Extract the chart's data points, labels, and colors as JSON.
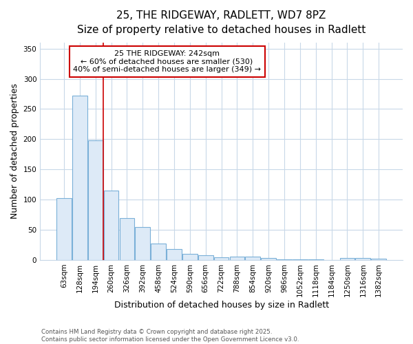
{
  "title_line1": "25, THE RIDGEWAY, RADLETT, WD7 8PZ",
  "title_line2": "Size of property relative to detached houses in Radlett",
  "xlabel": "Distribution of detached houses by size in Radlett",
  "ylabel": "Number of detached properties",
  "bar_labels": [
    "63sqm",
    "128sqm",
    "194sqm",
    "260sqm",
    "326sqm",
    "392sqm",
    "458sqm",
    "524sqm",
    "590sqm",
    "656sqm",
    "722sqm",
    "788sqm",
    "854sqm",
    "920sqm",
    "986sqm",
    "1052sqm",
    "1118sqm",
    "1184sqm",
    "1250sqm",
    "1316sqm",
    "1382sqm"
  ],
  "bar_values": [
    102,
    272,
    198,
    115,
    69,
    55,
    27,
    18,
    10,
    8,
    4,
    5,
    5,
    3,
    1,
    1,
    1,
    0,
    3,
    3,
    2
  ],
  "bar_color": "#ddeaf7",
  "bar_edge_color": "#7ab0d8",
  "ylim": [
    0,
    360
  ],
  "yticks": [
    0,
    50,
    100,
    150,
    200,
    250,
    300,
    350
  ],
  "red_line_x": 2.5,
  "red_line_color": "#cc0000",
  "annotation_text": "25 THE RIDGEWAY: 242sqm\n← 60% of detached houses are smaller (530)\n40% of semi-detached houses are larger (349) →",
  "annotation_box_edgecolor": "#cc0000",
  "background_color": "#ffffff",
  "grid_color": "#c8d8e8",
  "footer_text": "Contains HM Land Registry data © Crown copyright and database right 2025.\nContains public sector information licensed under the Open Government Licence v3.0.",
  "bar_width": 0.95,
  "title_fontsize": 11,
  "subtitle_fontsize": 10,
  "tick_fontsize": 7.5,
  "axis_label_fontsize": 9
}
